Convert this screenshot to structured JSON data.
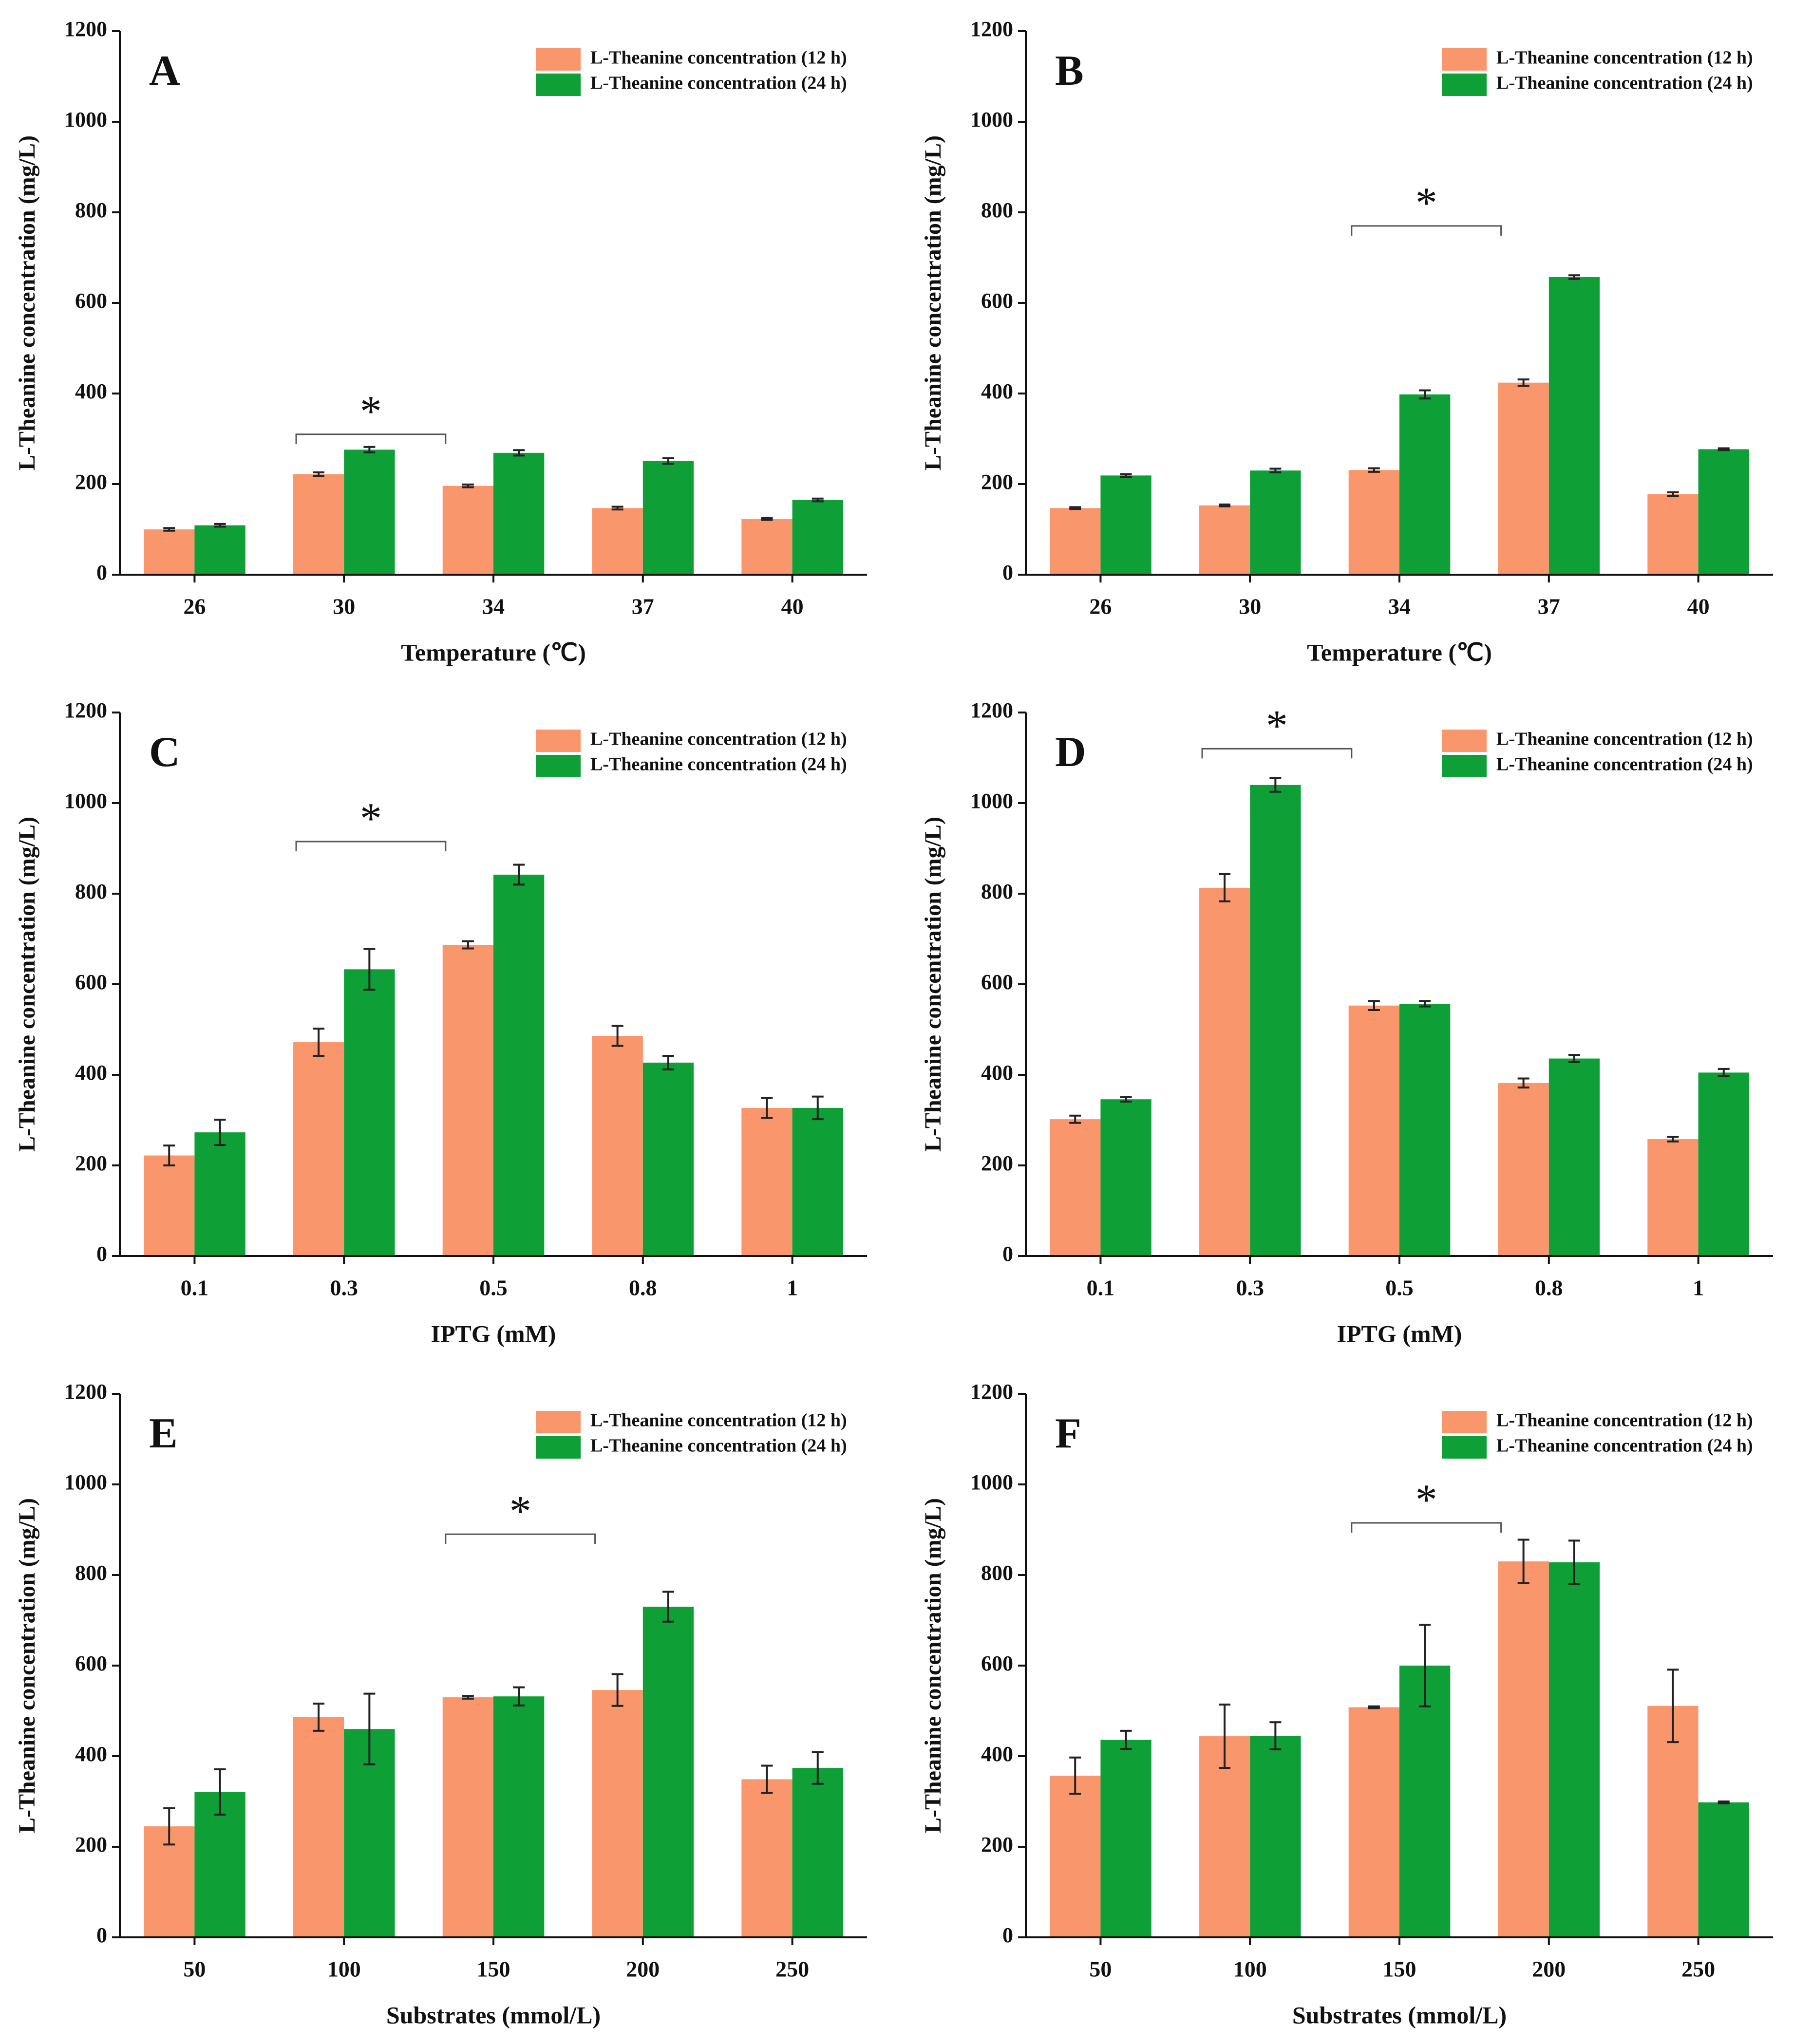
{
  "charts": [
    {
      "chart_data": {
        "type": "bar",
        "title": "A",
        "annotation": "*",
        "x_label": "Temperature (℃)",
        "y_label": "L-Theanine concentration (mg/L)",
        "categories": [
          "26",
          "30",
          "34",
          "37",
          "40"
        ],
        "series": [
          {
            "name": "L-Theanine concentration (12 h)",
            "color": "#f9966b",
            "values": [
              100,
              222,
              196,
              147,
              123
            ],
            "errors": [
              3,
              4,
              3,
              3,
              2
            ]
          },
          {
            "name": "L-Theanine concentration (24 h)",
            "color": "#0e9f37",
            "values": [
              109,
              276,
              269,
              251,
              165
            ],
            "errors": [
              3,
              6,
              6,
              6,
              3
            ]
          }
        ],
        "ylim": [
          0,
          1200
        ],
        "yticks": [
          0,
          200,
          400,
          600,
          800,
          1000,
          1200
        ],
        "legend": "upper right"
      }
    },
    {
      "chart_data": {
        "type": "bar",
        "title": "B",
        "annotation": "*",
        "x_label": "Temperature (℃)",
        "y_label": "L-Theanine concentration (mg/L)",
        "categories": [
          "26",
          "30",
          "34",
          "37",
          "40"
        ],
        "series": [
          {
            "name": "L-Theanine concentration (12 h)",
            "color": "#f9966b",
            "values": [
              147,
              153,
              231,
              424,
              178
            ],
            "errors": [
              2,
              2,
              4,
              7,
              4
            ]
          },
          {
            "name": "L-Theanine concentration (24 h)",
            "color": "#0e9f37",
            "values": [
              219,
              230,
              398,
              657,
              277
            ],
            "errors": [
              3,
              4,
              9,
              4,
              2
            ]
          }
        ],
        "ylim": [
          0,
          1200
        ],
        "yticks": [
          0,
          200,
          400,
          600,
          800,
          1000,
          1200
        ],
        "legend": "upper right"
      }
    },
    {
      "chart_data": {
        "type": "bar",
        "title": "C",
        "annotation": "*",
        "x_label": "IPTG (mM)",
        "y_label": "L-Theanine concentration (mg/L)",
        "categories": [
          "0.1",
          "0.3",
          "0.5",
          "0.8",
          "1"
        ],
        "series": [
          {
            "name": "L-Theanine concentration (12 h)",
            "color": "#f9966b",
            "values": [
              222,
              472,
              687,
              486,
              327
            ],
            "errors": [
              22,
              30,
              8,
              22,
              22
            ]
          },
          {
            "name": "L-Theanine concentration (24 h)",
            "color": "#0e9f37",
            "values": [
              273,
              633,
              842,
              427,
              327
            ],
            "errors": [
              28,
              45,
              22,
              15,
              25
            ]
          }
        ],
        "ylim": [
          0,
          1200
        ],
        "yticks": [
          0,
          200,
          400,
          600,
          800,
          1000,
          1200
        ],
        "legend": "upper right"
      }
    },
    {
      "chart_data": {
        "type": "bar",
        "title": "D",
        "annotation": "*",
        "x_label": "IPTG (mM)",
        "y_label": "L-Theanine concentration (mg/L)",
        "categories": [
          "0.1",
          "0.3",
          "0.5",
          "0.8",
          "1"
        ],
        "series": [
          {
            "name": "L-Theanine concentration (12 h)",
            "color": "#f9966b",
            "values": [
              302,
              813,
              553,
              382,
              258
            ],
            "errors": [
              8,
              30,
              10,
              10,
              5
            ]
          },
          {
            "name": "L-Theanine concentration (24 h)",
            "color": "#0e9f37",
            "values": [
              346,
              1040,
              557,
              436,
              405
            ],
            "errors": [
              5,
              15,
              6,
              8,
              8
            ]
          }
        ],
        "ylim": [
          0,
          1200
        ],
        "yticks": [
          0,
          200,
          400,
          600,
          800,
          1000,
          1200
        ],
        "legend": "upper right"
      }
    },
    {
      "chart_data": {
        "type": "bar",
        "title": "E",
        "annotation": "*",
        "x_label": "Substrates (mmol/L)",
        "y_label": "L-Theanine concentration (mg/L)",
        "categories": [
          "50",
          "100",
          "150",
          "200",
          "250"
        ],
        "series": [
          {
            "name": "L-Theanine concentration (12 h)",
            "color": "#f9966b",
            "values": [
              245,
              486,
              530,
              546,
              349
            ],
            "errors": [
              40,
              30,
              3,
              35,
              30
            ]
          },
          {
            "name": "L-Theanine concentration (24 h)",
            "color": "#0e9f37",
            "values": [
              321,
              460,
              532,
              730,
              374
            ],
            "errors": [
              50,
              78,
              20,
              33,
              35
            ]
          }
        ],
        "ylim": [
          0,
          1200
        ],
        "yticks": [
          0,
          200,
          400,
          600,
          800,
          1000,
          1200
        ],
        "legend": "upper right"
      }
    },
    {
      "chart_data": {
        "type": "bar",
        "title": "F",
        "annotation": "*",
        "x_label": "Substrates (mmol/L)",
        "y_label": "L-Theanine concentration (mg/L)",
        "categories": [
          "50",
          "100",
          "150",
          "200",
          "250"
        ],
        "series": [
          {
            "name": "L-Theanine concentration (12 h)",
            "color": "#f9966b",
            "values": [
              357,
              444,
              508,
              830,
              511
            ],
            "errors": [
              40,
              70,
              2,
              48,
              80
            ]
          },
          {
            "name": "L-Theanine concentration (24 h)",
            "color": "#0e9f37",
            "values": [
              436,
              445,
              600,
              828,
              298
            ],
            "errors": [
              20,
              30,
              90,
              48,
              2
            ]
          }
        ],
        "ylim": [
          0,
          1200
        ],
        "yticks": [
          0,
          200,
          400,
          600,
          800,
          1000,
          1200
        ],
        "legend": "upper right"
      }
    }
  ]
}
